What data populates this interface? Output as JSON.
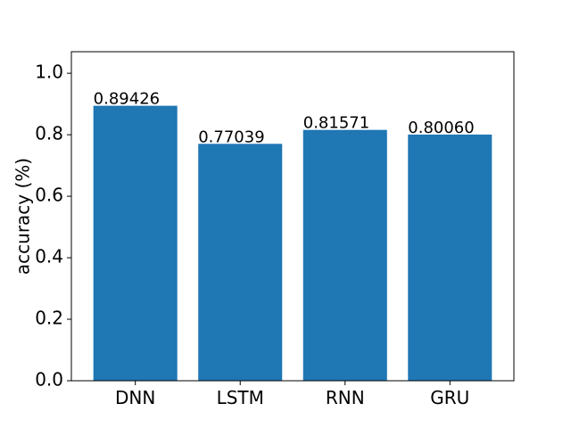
{
  "chart_data": {
    "type": "bar",
    "categories": [
      "DNN",
      "LSTM",
      "RNN",
      "GRU"
    ],
    "values": [
      0.89426,
      0.77039,
      0.81571,
      0.8006
    ],
    "data_labels": [
      "0.89426",
      "0.77039",
      "0.81571",
      "0.80060"
    ],
    "title": "",
    "xlabel": "",
    "ylabel": "accuracy (%)",
    "ylim": [
      0,
      1.07
    ],
    "yticks": [
      0.0,
      0.2,
      0.4,
      0.6,
      0.8,
      1.0
    ],
    "ytick_labels": [
      "0.0",
      "0.2",
      "0.4",
      "0.6",
      "0.8",
      "1.0"
    ],
    "grid": false,
    "legend": "none",
    "bar_color": "#1f77b4"
  }
}
